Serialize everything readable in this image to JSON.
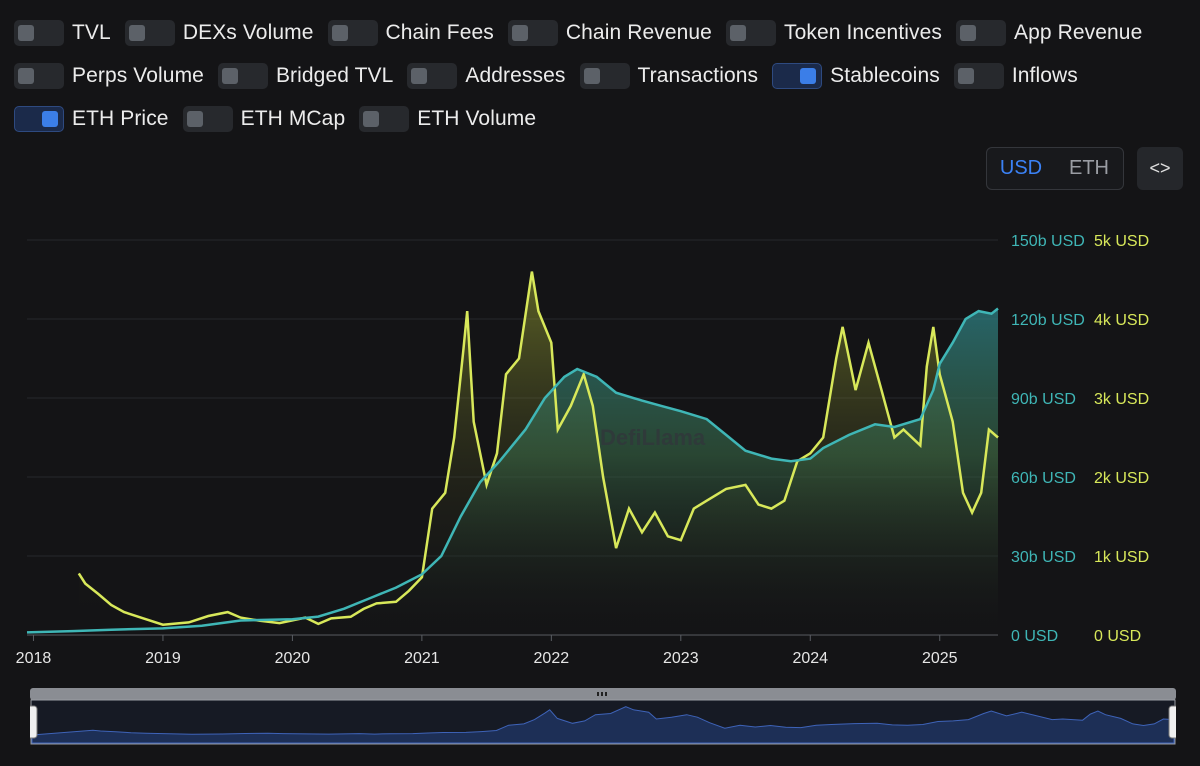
{
  "toggles": [
    [
      {
        "label": "TVL",
        "on": false
      },
      {
        "label": "DEXs Volume",
        "on": false
      },
      {
        "label": "Chain Fees",
        "on": false
      },
      {
        "label": "Chain Revenue",
        "on": false
      },
      {
        "label": "Token Incentives",
        "on": false
      },
      {
        "label": "App Revenue",
        "on": false
      }
    ],
    [
      {
        "label": "Perps Volume",
        "on": false
      },
      {
        "label": "Bridged TVL",
        "on": false
      },
      {
        "label": "Addresses",
        "on": false
      },
      {
        "label": "Transactions",
        "on": false
      },
      {
        "label": "Stablecoins",
        "on": true
      },
      {
        "label": "Inflows",
        "on": false
      }
    ],
    [
      {
        "label": "ETH Price",
        "on": true
      },
      {
        "label": "ETH MCap",
        "on": false
      },
      {
        "label": "ETH Volume",
        "on": false
      }
    ]
  ],
  "currency": {
    "options": [
      "USD",
      "ETH"
    ],
    "selected": "USD"
  },
  "embed_icon": "code-brackets-icon",
  "embed_glyph": "<>",
  "watermark": "DefiLlama",
  "colors": {
    "stablecoins": "#3fb6b6",
    "eth_price": "#d8e85a",
    "background": "#141416",
    "accent": "#3b7ee8"
  },
  "chart_data": {
    "type": "line",
    "title": "",
    "x_axis": {
      "ticks": [
        "2018",
        "2019",
        "2020",
        "2021",
        "2022",
        "2023",
        "2024",
        "2025"
      ],
      "range": [
        2017.95,
        2025.45
      ]
    },
    "y_axis_left": {
      "ticks": [
        "0 USD",
        "30b USD",
        "60b USD",
        "90b USD",
        "120b USD",
        "150b USD"
      ],
      "range": [
        0,
        150
      ]
    },
    "y_axis_right": {
      "ticks": [
        "0 USD",
        "1k USD",
        "2k USD",
        "3k USD",
        "4k USD",
        "5k USD"
      ],
      "range": [
        0,
        5000
      ]
    },
    "grid": true,
    "legend": "none",
    "series": [
      {
        "name": "Stablecoins",
        "axis": "left",
        "unit": "billion USD",
        "points": [
          [
            2017.95,
            1
          ],
          [
            2018.3,
            1.5
          ],
          [
            2018.6,
            2
          ],
          [
            2019.0,
            2.5
          ],
          [
            2019.3,
            3.5
          ],
          [
            2019.6,
            5.5
          ],
          [
            2020.0,
            6
          ],
          [
            2020.2,
            7
          ],
          [
            2020.4,
            10
          ],
          [
            2020.6,
            14
          ],
          [
            2020.8,
            18
          ],
          [
            2021.0,
            23
          ],
          [
            2021.15,
            30
          ],
          [
            2021.3,
            45
          ],
          [
            2021.45,
            58
          ],
          [
            2021.6,
            66
          ],
          [
            2021.8,
            78
          ],
          [
            2021.95,
            90
          ],
          [
            2022.1,
            98
          ],
          [
            2022.2,
            101
          ],
          [
            2022.35,
            98
          ],
          [
            2022.5,
            92
          ],
          [
            2022.7,
            89
          ],
          [
            2022.85,
            87
          ],
          [
            2023.0,
            85
          ],
          [
            2023.2,
            82
          ],
          [
            2023.35,
            76
          ],
          [
            2023.5,
            70
          ],
          [
            2023.7,
            67
          ],
          [
            2023.85,
            66
          ],
          [
            2024.0,
            67
          ],
          [
            2024.1,
            71
          ],
          [
            2024.3,
            76
          ],
          [
            2024.5,
            80
          ],
          [
            2024.65,
            79
          ],
          [
            2024.85,
            82
          ],
          [
            2024.95,
            93
          ],
          [
            2025.0,
            103
          ],
          [
            2025.1,
            111
          ],
          [
            2025.2,
            120
          ],
          [
            2025.3,
            123
          ],
          [
            2025.4,
            122
          ],
          [
            2025.45,
            124
          ]
        ]
      },
      {
        "name": "ETH Price",
        "axis": "right",
        "unit": "USD",
        "points": [
          [
            2018.35,
            780
          ],
          [
            2018.4,
            650
          ],
          [
            2018.5,
            520
          ],
          [
            2018.6,
            380
          ],
          [
            2018.7,
            290
          ],
          [
            2018.85,
            210
          ],
          [
            2019.0,
            130
          ],
          [
            2019.2,
            160
          ],
          [
            2019.35,
            240
          ],
          [
            2019.5,
            290
          ],
          [
            2019.6,
            220
          ],
          [
            2019.75,
            180
          ],
          [
            2019.9,
            150
          ],
          [
            2020.1,
            220
          ],
          [
            2020.2,
            140
          ],
          [
            2020.3,
            210
          ],
          [
            2020.45,
            230
          ],
          [
            2020.55,
            330
          ],
          [
            2020.65,
            400
          ],
          [
            2020.8,
            420
          ],
          [
            2020.9,
            560
          ],
          [
            2021.0,
            730
          ],
          [
            2021.08,
            1600
          ],
          [
            2021.18,
            1800
          ],
          [
            2021.25,
            2500
          ],
          [
            2021.32,
            3600
          ],
          [
            2021.35,
            4100
          ],
          [
            2021.4,
            2700
          ],
          [
            2021.5,
            1900
          ],
          [
            2021.58,
            2300
          ],
          [
            2021.65,
            3300
          ],
          [
            2021.75,
            3500
          ],
          [
            2021.85,
            4600
          ],
          [
            2021.9,
            4100
          ],
          [
            2022.0,
            3700
          ],
          [
            2022.05,
            2600
          ],
          [
            2022.15,
            2900
          ],
          [
            2022.25,
            3300
          ],
          [
            2022.32,
            2900
          ],
          [
            2022.4,
            2000
          ],
          [
            2022.5,
            1100
          ],
          [
            2022.6,
            1600
          ],
          [
            2022.7,
            1300
          ],
          [
            2022.8,
            1550
          ],
          [
            2022.9,
            1250
          ],
          [
            2023.0,
            1200
          ],
          [
            2023.1,
            1600
          ],
          [
            2023.2,
            1700
          ],
          [
            2023.35,
            1850
          ],
          [
            2023.5,
            1900
          ],
          [
            2023.6,
            1650
          ],
          [
            2023.7,
            1600
          ],
          [
            2023.8,
            1700
          ],
          [
            2023.9,
            2200
          ],
          [
            2024.0,
            2300
          ],
          [
            2024.1,
            2500
          ],
          [
            2024.2,
            3500
          ],
          [
            2024.25,
            3900
          ],
          [
            2024.35,
            3100
          ],
          [
            2024.45,
            3700
          ],
          [
            2024.55,
            3100
          ],
          [
            2024.65,
            2500
          ],
          [
            2024.72,
            2600
          ],
          [
            2024.85,
            2400
          ],
          [
            2024.9,
            3400
          ],
          [
            2024.95,
            3900
          ],
          [
            2025.0,
            3300
          ],
          [
            2025.1,
            2700
          ],
          [
            2025.18,
            1800
          ],
          [
            2025.25,
            1550
          ],
          [
            2025.32,
            1800
          ],
          [
            2025.38,
            2600
          ],
          [
            2025.45,
            2500
          ]
        ]
      }
    ]
  }
}
